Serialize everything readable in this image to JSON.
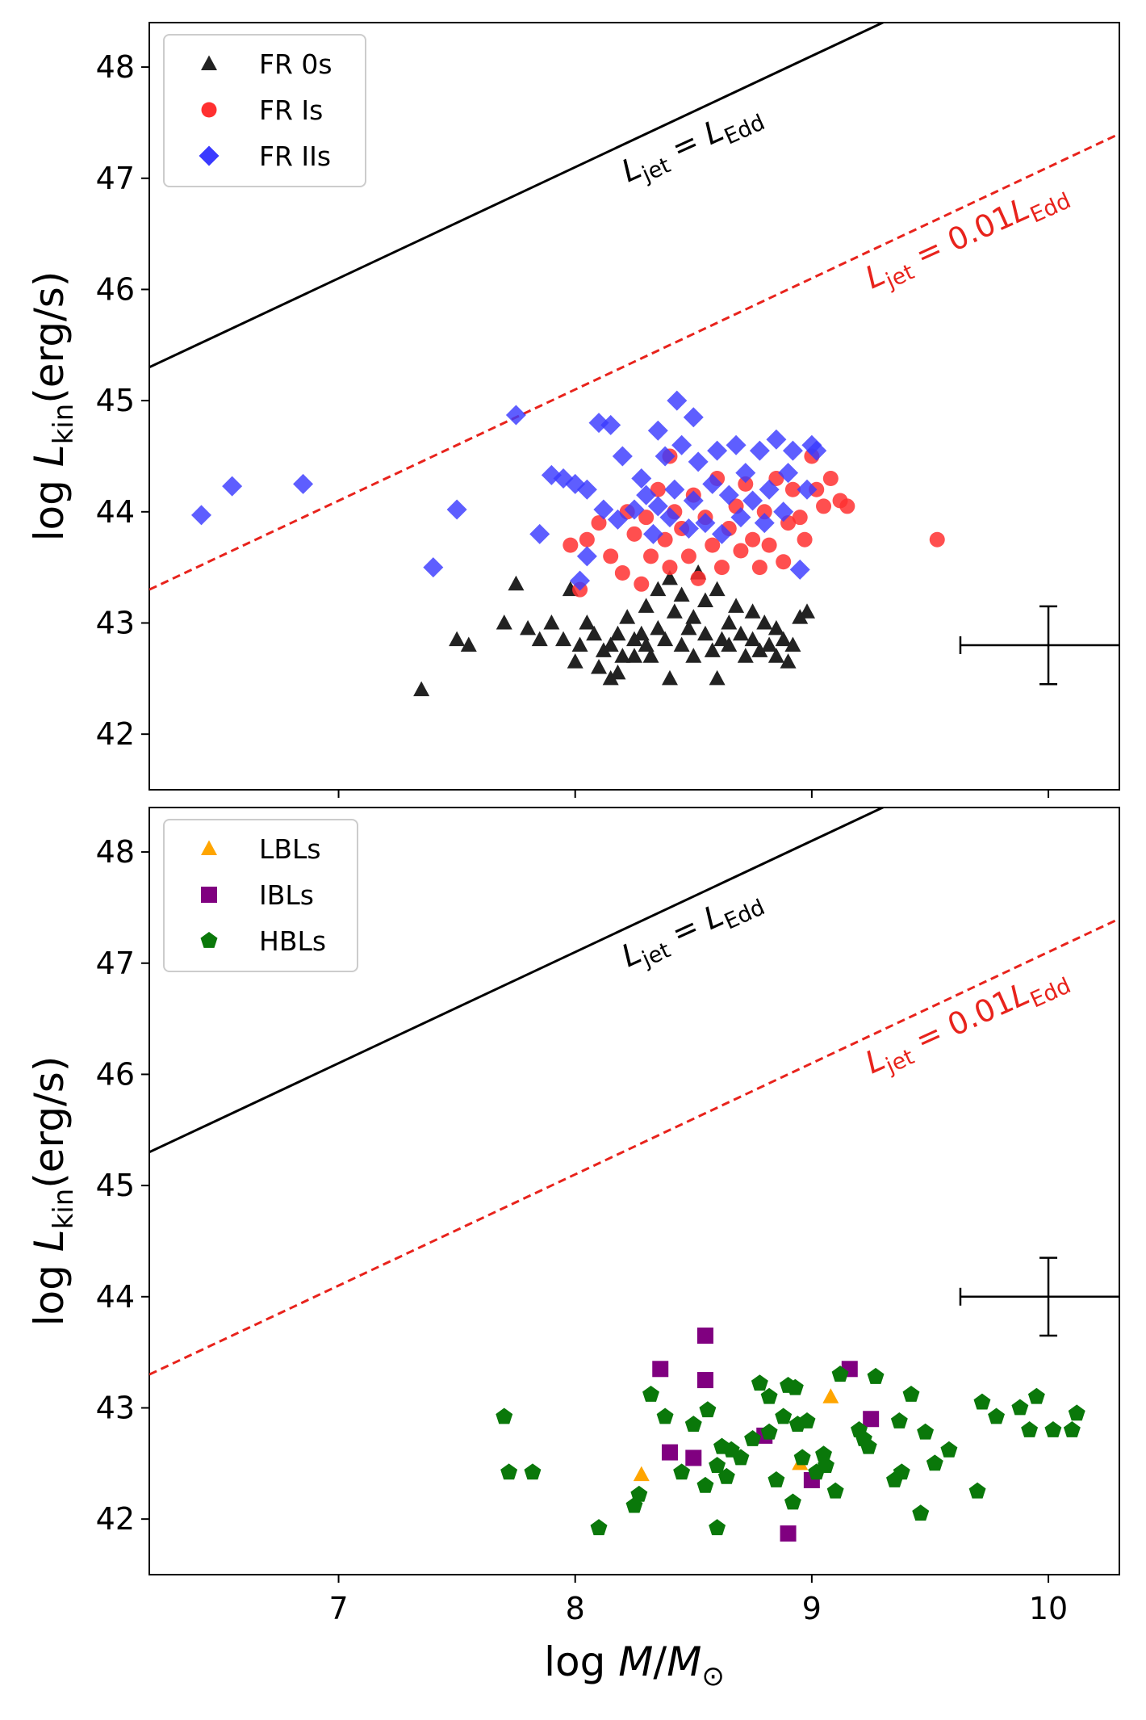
{
  "chart_data": [
    {
      "type": "scatter",
      "panel": "top",
      "xlabel": "log M/M⊙",
      "ylabel": "log L_kin(erg/s)",
      "xlim": [
        6.2,
        10.3
      ],
      "ylim": [
        41.5,
        48.4
      ],
      "xticks": [
        7,
        8,
        9,
        10
      ],
      "yticks": [
        42,
        43,
        44,
        45,
        46,
        47,
        48
      ],
      "show_x_tick_labels": false,
      "legend_position": "top-left",
      "reference_lines": [
        {
          "label": "L_jet = L_Edd",
          "intercept_at_log_m": 45.3,
          "slope": 1,
          "color": "#000000",
          "style": "solid"
        },
        {
          "label": "L_jet = 0.01L_Edd",
          "intercept_at_log_m": 43.3,
          "slope": 1,
          "color": "#e8231c",
          "style": "dashed"
        }
      ],
      "error_bar": {
        "x": 10.0,
        "y": 42.8,
        "xerr": 0.12,
        "yerr": 0.35
      },
      "series": [
        {
          "name": "FR 0s",
          "marker": "triangle",
          "color": "#222222",
          "points": [
            [
              7.35,
              42.4
            ],
            [
              7.5,
              42.85
            ],
            [
              7.55,
              42.8
            ],
            [
              7.7,
              43.0
            ],
            [
              7.75,
              43.35
            ],
            [
              7.8,
              42.95
            ],
            [
              7.85,
              42.85
            ],
            [
              7.9,
              43.0
            ],
            [
              7.95,
              42.85
            ],
            [
              7.98,
              43.3
            ],
            [
              8.0,
              42.65
            ],
            [
              8.02,
              42.8
            ],
            [
              8.05,
              43.0
            ],
            [
              8.08,
              42.9
            ],
            [
              8.1,
              42.6
            ],
            [
              8.12,
              42.75
            ],
            [
              8.15,
              42.8
            ],
            [
              8.15,
              42.5
            ],
            [
              8.18,
              42.9
            ],
            [
              8.18,
              42.55
            ],
            [
              8.2,
              42.7
            ],
            [
              8.22,
              43.05
            ],
            [
              8.25,
              42.85
            ],
            [
              8.25,
              42.7
            ],
            [
              8.28,
              42.9
            ],
            [
              8.3,
              42.8
            ],
            [
              8.3,
              43.15
            ],
            [
              8.32,
              42.7
            ],
            [
              8.35,
              42.95
            ],
            [
              8.35,
              43.3
            ],
            [
              8.38,
              42.85
            ],
            [
              8.4,
              43.4
            ],
            [
              8.4,
              42.5
            ],
            [
              8.42,
              43.1
            ],
            [
              8.45,
              42.8
            ],
            [
              8.45,
              43.25
            ],
            [
              8.48,
              42.95
            ],
            [
              8.5,
              43.05
            ],
            [
              8.5,
              42.7
            ],
            [
              8.52,
              43.45
            ],
            [
              8.55,
              42.9
            ],
            [
              8.55,
              43.2
            ],
            [
              8.58,
              42.75
            ],
            [
              8.6,
              43.3
            ],
            [
              8.6,
              42.5
            ],
            [
              8.62,
              42.85
            ],
            [
              8.65,
              43.0
            ],
            [
              8.65,
              42.8
            ],
            [
              8.68,
              43.15
            ],
            [
              8.7,
              42.9
            ],
            [
              8.72,
              42.7
            ],
            [
              8.75,
              43.1
            ],
            [
              8.75,
              42.85
            ],
            [
              8.78,
              42.75
            ],
            [
              8.8,
              43.0
            ],
            [
              8.82,
              42.8
            ],
            [
              8.85,
              42.95
            ],
            [
              8.85,
              42.7
            ],
            [
              8.88,
              42.85
            ],
            [
              8.9,
              42.65
            ],
            [
              8.92,
              42.8
            ],
            [
              8.95,
              43.05
            ],
            [
              8.98,
              43.1
            ]
          ]
        },
        {
          "name": "FR Is",
          "marker": "circle",
          "color": "#ff3030",
          "points": [
            [
              7.98,
              43.7
            ],
            [
              8.02,
              43.3
            ],
            [
              8.05,
              43.75
            ],
            [
              8.1,
              43.9
            ],
            [
              8.15,
              43.6
            ],
            [
              8.2,
              43.45
            ],
            [
              8.22,
              44.0
            ],
            [
              8.25,
              43.8
            ],
            [
              8.28,
              43.35
            ],
            [
              8.3,
              43.95
            ],
            [
              8.32,
              43.6
            ],
            [
              8.35,
              44.2
            ],
            [
              8.38,
              43.75
            ],
            [
              8.4,
              44.5
            ],
            [
              8.4,
              43.5
            ],
            [
              8.42,
              44.0
            ],
            [
              8.45,
              43.85
            ],
            [
              8.48,
              43.6
            ],
            [
              8.5,
              44.15
            ],
            [
              8.52,
              43.4
            ],
            [
              8.55,
              43.95
            ],
            [
              8.58,
              43.7
            ],
            [
              8.6,
              44.3
            ],
            [
              8.62,
              43.5
            ],
            [
              8.65,
              43.85
            ],
            [
              8.68,
              44.05
            ],
            [
              8.7,
              43.65
            ],
            [
              8.72,
              44.25
            ],
            [
              8.75,
              43.75
            ],
            [
              8.78,
              43.5
            ],
            [
              8.8,
              44.0
            ],
            [
              8.82,
              43.7
            ],
            [
              8.85,
              44.3
            ],
            [
              8.88,
              43.55
            ],
            [
              8.9,
              43.9
            ],
            [
              8.92,
              44.2
            ],
            [
              8.95,
              43.95
            ],
            [
              8.97,
              43.75
            ],
            [
              9.0,
              44.5
            ],
            [
              9.02,
              44.2
            ],
            [
              9.05,
              44.05
            ],
            [
              9.08,
              44.3
            ],
            [
              9.12,
              44.1
            ],
            [
              9.15,
              44.05
            ],
            [
              9.53,
              43.75
            ]
          ]
        },
        {
          "name": "FR IIs",
          "marker": "diamond",
          "color": "#3a3aff",
          "points": [
            [
              6.42,
              43.97
            ],
            [
              6.55,
              44.23
            ],
            [
              6.85,
              44.25
            ],
            [
              7.4,
              43.5
            ],
            [
              7.5,
              44.02
            ],
            [
              7.75,
              44.87
            ],
            [
              7.85,
              43.8
            ],
            [
              7.9,
              44.33
            ],
            [
              7.95,
              44.3
            ],
            [
              8.0,
              44.25
            ],
            [
              8.02,
              43.38
            ],
            [
              8.05,
              44.2
            ],
            [
              8.05,
              43.6
            ],
            [
              8.1,
              44.8
            ],
            [
              8.12,
              44.02
            ],
            [
              8.15,
              44.78
            ],
            [
              8.18,
              43.93
            ],
            [
              8.2,
              44.5
            ],
            [
              8.25,
              44.02
            ],
            [
              8.28,
              44.3
            ],
            [
              8.3,
              44.15
            ],
            [
              8.33,
              43.8
            ],
            [
              8.35,
              44.05
            ],
            [
              8.35,
              44.73
            ],
            [
              8.38,
              44.5
            ],
            [
              8.4,
              43.95
            ],
            [
              8.42,
              44.2
            ],
            [
              8.43,
              45.0
            ],
            [
              8.45,
              44.6
            ],
            [
              8.48,
              43.85
            ],
            [
              8.5,
              44.85
            ],
            [
              8.5,
              44.1
            ],
            [
              8.52,
              44.45
            ],
            [
              8.55,
              43.9
            ],
            [
              8.58,
              44.25
            ],
            [
              8.6,
              44.55
            ],
            [
              8.62,
              43.8
            ],
            [
              8.65,
              44.15
            ],
            [
              8.68,
              44.6
            ],
            [
              8.7,
              43.95
            ],
            [
              8.72,
              44.35
            ],
            [
              8.75,
              44.1
            ],
            [
              8.78,
              44.55
            ],
            [
              8.8,
              43.9
            ],
            [
              8.82,
              44.2
            ],
            [
              8.85,
              44.65
            ],
            [
              8.88,
              44.0
            ],
            [
              8.9,
              44.35
            ],
            [
              8.92,
              44.55
            ],
            [
              8.95,
              43.48
            ],
            [
              8.98,
              44.2
            ],
            [
              9.0,
              44.6
            ],
            [
              9.02,
              44.55
            ]
          ]
        }
      ]
    },
    {
      "type": "scatter",
      "panel": "bottom",
      "xlabel": "log M/M⊙",
      "ylabel": "log L_kin(erg/s)",
      "xlim": [
        6.2,
        10.3
      ],
      "ylim": [
        41.5,
        48.4
      ],
      "xticks": [
        7,
        8,
        9,
        10
      ],
      "yticks": [
        42,
        43,
        44,
        45,
        46,
        47,
        48
      ],
      "show_x_tick_labels": true,
      "legend_position": "top-left",
      "reference_lines": [
        {
          "label": "L_jet = L_Edd",
          "intercept_at_log_m": 45.3,
          "slope": 1,
          "color": "#000000",
          "style": "solid"
        },
        {
          "label": "L_jet = 0.01L_Edd",
          "intercept_at_log_m": 43.3,
          "slope": 1,
          "color": "#e8231c",
          "style": "dashed"
        }
      ],
      "error_bar": {
        "x": 10.0,
        "y": 44.0,
        "xerr": 0.12,
        "yerr": 0.35
      },
      "series": [
        {
          "name": "LBLs",
          "marker": "triangle",
          "color": "#ffa500",
          "points": [
            [
              8.28,
              42.4
            ],
            [
              8.95,
              42.5
            ],
            [
              9.08,
              43.1
            ]
          ]
        },
        {
          "name": "IBLs",
          "marker": "square",
          "color": "#800080",
          "points": [
            [
              8.36,
              43.35
            ],
            [
              8.4,
              42.6
            ],
            [
              8.5,
              42.55
            ],
            [
              8.55,
              43.25
            ],
            [
              8.55,
              43.65
            ],
            [
              8.8,
              42.75
            ],
            [
              8.9,
              41.87
            ],
            [
              9.0,
              42.35
            ],
            [
              9.16,
              43.35
            ],
            [
              9.25,
              42.9
            ]
          ]
        },
        {
          "name": "HBLs",
          "marker": "pentagon",
          "color": "#0a780a",
          "points": [
            [
              7.7,
              42.92
            ],
            [
              7.72,
              42.42
            ],
            [
              7.82,
              42.42
            ],
            [
              8.1,
              41.92
            ],
            [
              8.25,
              42.12
            ],
            [
              8.27,
              42.22
            ],
            [
              8.32,
              43.12
            ],
            [
              8.38,
              42.92
            ],
            [
              8.45,
              42.42
            ],
            [
              8.5,
              42.85
            ],
            [
              8.55,
              42.3
            ],
            [
              8.56,
              42.98
            ],
            [
              8.6,
              42.48
            ],
            [
              8.6,
              41.92
            ],
            [
              8.62,
              42.65
            ],
            [
              8.64,
              42.38
            ],
            [
              8.66,
              42.62
            ],
            [
              8.7,
              42.55
            ],
            [
              8.75,
              42.72
            ],
            [
              8.78,
              43.22
            ],
            [
              8.82,
              43.1
            ],
            [
              8.82,
              42.78
            ],
            [
              8.85,
              42.35
            ],
            [
              8.88,
              42.92
            ],
            [
              8.9,
              43.2
            ],
            [
              8.92,
              42.15
            ],
            [
              8.93,
              43.18
            ],
            [
              8.94,
              42.85
            ],
            [
              8.96,
              42.55
            ],
            [
              8.98,
              42.88
            ],
            [
              9.02,
              42.42
            ],
            [
              9.05,
              42.58
            ],
            [
              9.06,
              42.48
            ],
            [
              9.1,
              42.25
            ],
            [
              9.12,
              43.3
            ],
            [
              9.2,
              42.8
            ],
            [
              9.22,
              42.72
            ],
            [
              9.24,
              42.65
            ],
            [
              9.27,
              43.28
            ],
            [
              9.35,
              42.35
            ],
            [
              9.37,
              42.88
            ],
            [
              9.38,
              42.42
            ],
            [
              9.42,
              43.12
            ],
            [
              9.46,
              42.05
            ],
            [
              9.48,
              42.78
            ],
            [
              9.52,
              42.5
            ],
            [
              9.58,
              42.62
            ],
            [
              9.7,
              42.25
            ],
            [
              9.72,
              43.05
            ],
            [
              9.78,
              42.92
            ],
            [
              9.88,
              43.0
            ],
            [
              9.92,
              42.8
            ],
            [
              9.95,
              43.1
            ],
            [
              10.02,
              42.8
            ],
            [
              10.1,
              42.8
            ],
            [
              10.12,
              42.95
            ]
          ]
        }
      ]
    }
  ]
}
